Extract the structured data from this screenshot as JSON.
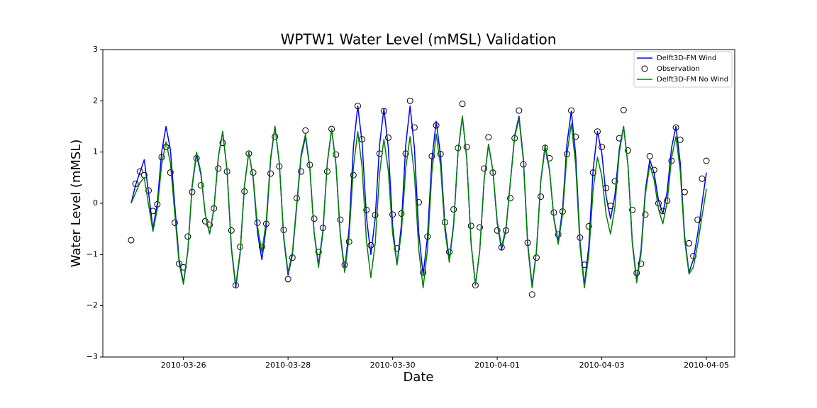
{
  "chart_data": {
    "type": "line",
    "title": "WPTW1 Water Level (mMSL) Validation",
    "xlabel": "Date",
    "ylabel": "Water Level (mMSL)",
    "legend": "upper right",
    "xlim": [
      "2010-03-24 11:00",
      "2010-04-05 13:00"
    ],
    "xticks": [
      "2010-03-26",
      "2010-03-28",
      "2010-03-30",
      "2010-04-01",
      "2010-04-03",
      "2010-04-05"
    ],
    "ylim": [
      -3,
      3
    ],
    "yticks": [
      {
        "value": -3,
        "label": "−3"
      },
      {
        "value": -2,
        "label": "−2"
      },
      {
        "value": -1,
        "label": "−1"
      },
      0,
      1,
      2,
      3
    ],
    "x": [
      "2010-03-25 00:00",
      "2010-03-25 02:00",
      "2010-03-25 04:00",
      "2010-03-25 06:00",
      "2010-03-25 08:00",
      "2010-03-25 10:00",
      "2010-03-25 12:00",
      "2010-03-25 14:00",
      "2010-03-25 16:00",
      "2010-03-25 18:00",
      "2010-03-25 20:00",
      "2010-03-25 22:00",
      "2010-03-26 00:00",
      "2010-03-26 02:00",
      "2010-03-26 04:00",
      "2010-03-26 06:00",
      "2010-03-26 08:00",
      "2010-03-26 10:00",
      "2010-03-26 12:00",
      "2010-03-26 14:00",
      "2010-03-26 16:00",
      "2010-03-26 18:00",
      "2010-03-26 20:00",
      "2010-03-26 22:00",
      "2010-03-27 00:00",
      "2010-03-27 02:00",
      "2010-03-27 04:00",
      "2010-03-27 06:00",
      "2010-03-27 08:00",
      "2010-03-27 10:00",
      "2010-03-27 12:00",
      "2010-03-27 14:00",
      "2010-03-27 16:00",
      "2010-03-27 18:00",
      "2010-03-27 20:00",
      "2010-03-27 22:00",
      "2010-03-28 00:00",
      "2010-03-28 02:00",
      "2010-03-28 04:00",
      "2010-03-28 06:00",
      "2010-03-28 08:00",
      "2010-03-28 10:00",
      "2010-03-28 12:00",
      "2010-03-28 14:00",
      "2010-03-28 16:00",
      "2010-03-28 18:00",
      "2010-03-28 20:00",
      "2010-03-28 22:00",
      "2010-03-29 00:00",
      "2010-03-29 02:00",
      "2010-03-29 04:00",
      "2010-03-29 06:00",
      "2010-03-29 08:00",
      "2010-03-29 10:00",
      "2010-03-29 12:00",
      "2010-03-29 14:00",
      "2010-03-29 16:00",
      "2010-03-29 18:00",
      "2010-03-29 20:00",
      "2010-03-29 22:00",
      "2010-03-30 00:00",
      "2010-03-30 02:00",
      "2010-03-30 04:00",
      "2010-03-30 06:00",
      "2010-03-30 08:00",
      "2010-03-30 10:00",
      "2010-03-30 12:00",
      "2010-03-30 14:00",
      "2010-03-30 16:00",
      "2010-03-30 18:00",
      "2010-03-30 20:00",
      "2010-03-30 22:00",
      "2010-03-31 00:00",
      "2010-03-31 02:00",
      "2010-03-31 04:00",
      "2010-03-31 06:00",
      "2010-03-31 08:00",
      "2010-03-31 10:00",
      "2010-03-31 12:00",
      "2010-03-31 14:00",
      "2010-03-31 16:00",
      "2010-03-31 18:00",
      "2010-03-31 20:00",
      "2010-03-31 22:00",
      "2010-04-01 00:00",
      "2010-04-01 02:00",
      "2010-04-01 04:00",
      "2010-04-01 06:00",
      "2010-04-01 08:00",
      "2010-04-01 10:00",
      "2010-04-01 12:00",
      "2010-04-01 14:00",
      "2010-04-01 16:00",
      "2010-04-01 18:00",
      "2010-04-01 20:00",
      "2010-04-01 22:00",
      "2010-04-02 00:00",
      "2010-04-02 02:00",
      "2010-04-02 04:00",
      "2010-04-02 06:00",
      "2010-04-02 08:00",
      "2010-04-02 10:00",
      "2010-04-02 12:00",
      "2010-04-02 14:00",
      "2010-04-02 16:00",
      "2010-04-02 18:00",
      "2010-04-02 20:00",
      "2010-04-02 22:00",
      "2010-04-03 00:00",
      "2010-04-03 02:00",
      "2010-04-03 04:00",
      "2010-04-03 06:00",
      "2010-04-03 08:00",
      "2010-04-03 10:00",
      "2010-04-03 12:00",
      "2010-04-03 14:00",
      "2010-04-03 16:00",
      "2010-04-03 18:00",
      "2010-04-03 20:00",
      "2010-04-03 22:00",
      "2010-04-04 00:00",
      "2010-04-04 02:00",
      "2010-04-04 04:00",
      "2010-04-04 06:00",
      "2010-04-04 08:00",
      "2010-04-04 10:00",
      "2010-04-04 12:00",
      "2010-04-04 14:00",
      "2010-04-04 16:00",
      "2010-04-04 18:00",
      "2010-04-04 20:00",
      "2010-04-04 22:00",
      "2010-04-05 00:00"
    ],
    "series": [
      {
        "name": "Delft3D-FM Wind",
        "color": "#0000ff",
        "style": "line",
        "values": [
          0.0,
          0.35,
          0.6,
          0.85,
          0.2,
          -0.5,
          0.0,
          1.0,
          1.5,
          1.05,
          -0.03,
          -1.1,
          -1.55,
          -0.93,
          0.33,
          0.95,
          0.56,
          -0.21,
          -0.6,
          -0.1,
          0.9,
          1.4,
          0.64,
          -0.89,
          -1.65,
          -0.99,
          0.34,
          1.0,
          0.48,
          -0.58,
          -1.1,
          -0.45,
          0.85,
          1.5,
          0.78,
          -0.68,
          -1.4,
          -1.01,
          -0.05,
          0.91,
          1.3,
          0.68,
          -0.58,
          -1.2,
          -0.54,
          0.79,
          1.45,
          0.76,
          -0.61,
          -1.3,
          -0.5,
          1.1,
          1.9,
          1.18,
          -0.28,
          -1.0,
          -0.29,
          1.14,
          1.85,
          1.09,
          -0.44,
          -1.2,
          -0.43,
          1.13,
          1.9,
          1.08,
          -0.58,
          -1.4,
          -0.65,
          0.85,
          1.6,
          0.93,
          -0.43,
          -1.1,
          -0.4,
          1.0,
          1.7,
          0.88,
          -0.78,
          -1.6,
          -0.91,
          0.46,
          1.15,
          0.64,
          -0.39,
          -0.9,
          -0.52,
          0.4,
          1.32,
          1.7,
          0.88,
          -0.78,
          -1.6,
          -0.93,
          0.43,
          1.1,
          0.64,
          -0.29,
          -0.75,
          -0.11,
          1.16,
          1.8,
          0.95,
          -0.75,
          -1.6,
          -0.85,
          0.65,
          1.4,
          0.98,
          0.13,
          -0.3,
          0.15,
          1.05,
          1.5,
          0.75,
          -0.75,
          -1.5,
          -0.91,
          0.26,
          0.85,
          0.59,
          0.06,
          -0.2,
          0.23,
          1.08,
          1.5,
          0.79,
          -0.64,
          -1.35,
          -1.1,
          -0.6,
          0.0,
          0.6
        ]
      },
      {
        "name": "Observation",
        "color": "#000000",
        "style": "scatter",
        "values": [
          -0.72,
          0.38,
          0.62,
          0.55,
          0.25,
          -0.15,
          -0.02,
          0.9,
          1.1,
          0.6,
          -0.38,
          -1.18,
          -1.25,
          -0.65,
          0.22,
          0.88,
          0.35,
          -0.35,
          -0.42,
          -0.1,
          0.68,
          1.18,
          0.62,
          -0.53,
          -1.6,
          -0.85,
          0.23,
          0.97,
          0.6,
          -0.38,
          -0.85,
          -0.4,
          0.58,
          1.3,
          0.72,
          -0.52,
          -1.48,
          -1.06,
          0.1,
          0.62,
          1.42,
          0.75,
          -0.3,
          -0.95,
          -0.48,
          0.62,
          1.45,
          0.95,
          -0.32,
          -1.2,
          -0.75,
          0.55,
          1.9,
          1.25,
          -0.13,
          -0.82,
          -0.23,
          0.97,
          1.8,
          1.28,
          -0.22,
          -0.88,
          -0.2,
          0.97,
          2.0,
          1.48,
          0.02,
          -1.35,
          -0.65,
          0.92,
          1.52,
          0.96,
          -0.37,
          -0.95,
          -0.12,
          1.08,
          1.94,
          1.1,
          -0.44,
          -1.6,
          -0.47,
          0.68,
          1.29,
          0.6,
          -0.53,
          -0.86,
          -0.53,
          0.1,
          1.27,
          1.81,
          0.76,
          -0.77,
          -1.78,
          -1.06,
          0.13,
          1.08,
          0.88,
          -0.18,
          -0.61,
          -0.16,
          0.96,
          1.81,
          1.3,
          -0.67,
          -1.2,
          -0.45,
          0.6,
          1.4,
          1.1,
          0.3,
          -0.05,
          0.43,
          1.27,
          1.82,
          1.03,
          -0.13,
          -1.36,
          -1.18,
          -0.22,
          0.92,
          0.65,
          0.0,
          -0.15,
          0.05,
          0.83,
          1.48,
          1.24,
          0.22,
          -0.78,
          -1.03,
          -0.32,
          0.48,
          0.83
        ]
      },
      {
        "name": "Delft3D-FM No Wind",
        "color": "#008000",
        "style": "line",
        "values": [
          0.0,
          0.2,
          0.4,
          0.5,
          -0.03,
          -0.55,
          -0.11,
          0.76,
          1.2,
          0.79,
          -0.19,
          -1.17,
          -1.58,
          -0.94,
          0.36,
          1.0,
          0.6,
          -0.2,
          -0.6,
          -0.1,
          0.9,
          1.4,
          0.65,
          -0.85,
          -1.6,
          -0.95,
          0.35,
          1.0,
          0.51,
          -0.46,
          -0.95,
          -0.34,
          0.89,
          1.5,
          0.79,
          -0.64,
          -1.35,
          -0.96,
          0.0,
          0.96,
          1.35,
          0.7,
          -0.6,
          -1.25,
          -0.58,
          0.78,
          1.45,
          0.75,
          -0.65,
          -1.35,
          -0.66,
          0.71,
          1.4,
          0.69,
          -0.74,
          -1.45,
          -0.78,
          0.58,
          1.25,
          0.64,
          -0.59,
          -1.2,
          -0.58,
          0.68,
          1.3,
          0.56,
          -0.91,
          -1.65,
          -0.9,
          0.6,
          1.35,
          0.73,
          -0.53,
          -1.15,
          -0.44,
          0.99,
          1.7,
          0.88,
          -0.78,
          -1.6,
          -0.91,
          0.46,
          1.15,
          0.65,
          -0.35,
          -0.85,
          -0.49,
          0.4,
          1.29,
          1.65,
          0.83,
          -0.83,
          -1.65,
          -0.95,
          0.45,
          1.15,
          0.66,
          -0.31,
          -0.8,
          -0.21,
          0.96,
          1.55,
          0.75,
          -0.85,
          -1.65,
          -1.01,
          0.26,
          0.9,
          0.53,
          -0.23,
          -0.6,
          -0.08,
          0.98,
          1.5,
          0.74,
          -0.79,
          -1.55,
          -0.98,
          0.18,
          0.75,
          0.46,
          -0.11,
          -0.4,
          0.03,
          0.88,
          1.3,
          0.63,
          -0.71,
          -1.38,
          -1.25,
          -0.8,
          -0.25,
          0.28
        ]
      }
    ]
  }
}
